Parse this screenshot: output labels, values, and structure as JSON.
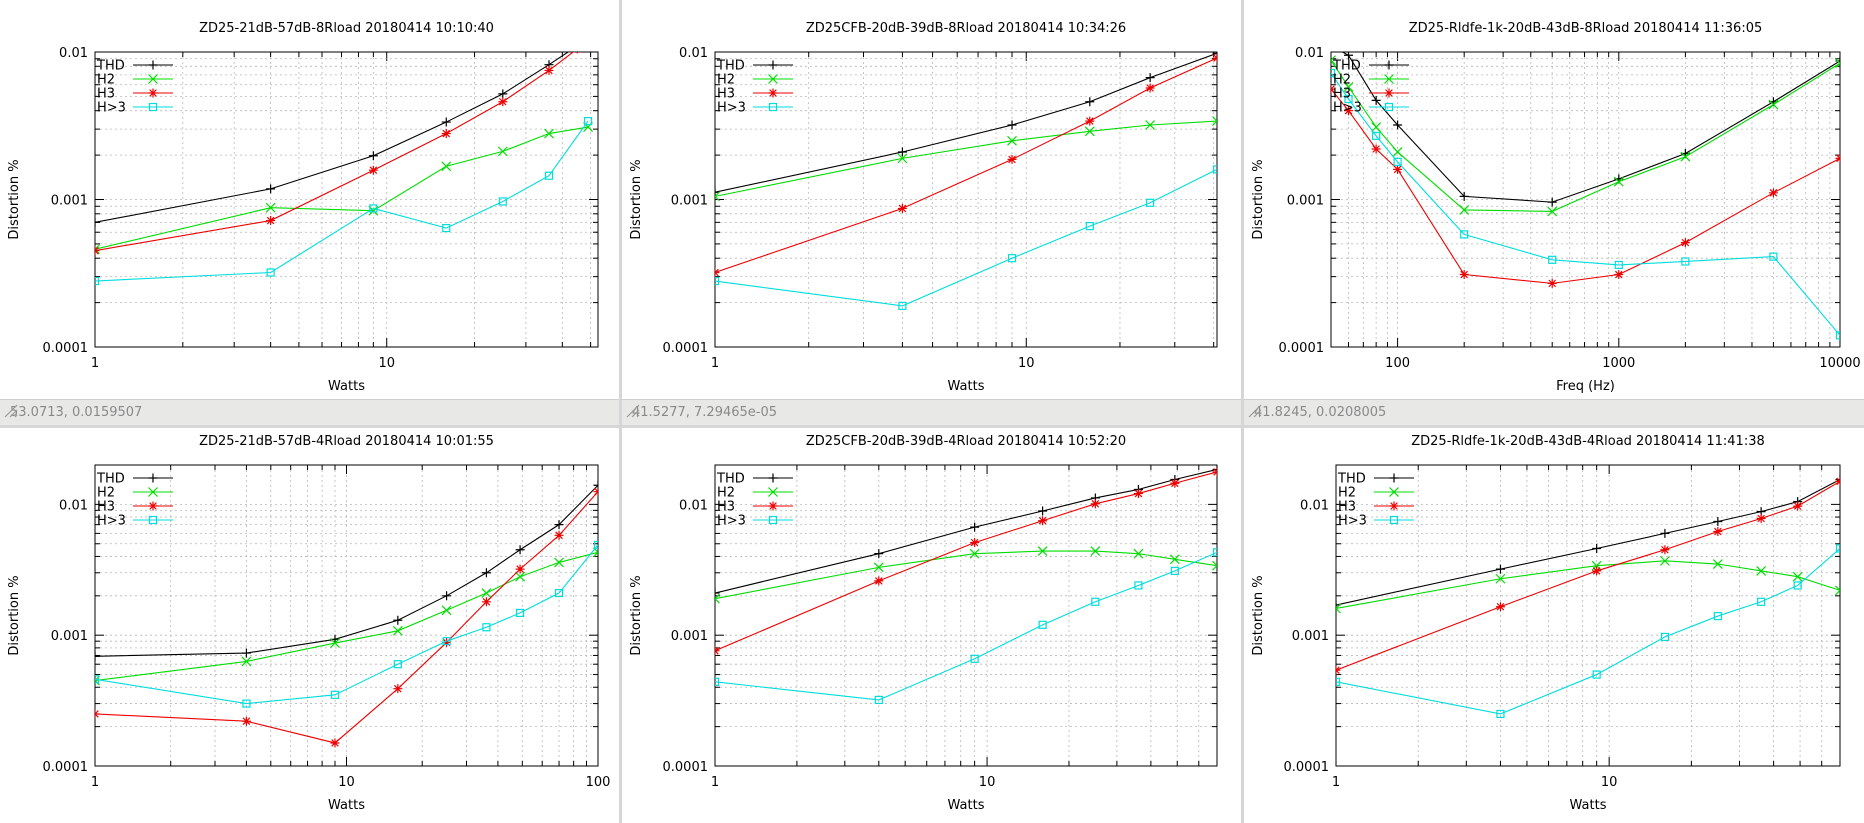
{
  "panels": [
    {
      "status": "53.0713,  0.0159507",
      "chart": {
        "type": "line",
        "title": "ZD25-21dB-57dB-8Rload 20180414 10:10:40",
        "xlabel": "Watts",
        "ylabel": "Distortion %",
        "xscale": "log",
        "yscale": "log",
        "xlim": [
          1,
          53
        ],
        "ylim": [
          0.0001,
          0.01
        ],
        "xticks": [
          1,
          10
        ],
        "yticks": [
          "0.0001",
          "0.001",
          "0.01"
        ],
        "grid": true,
        "legend": "top-left",
        "series": [
          {
            "name": "THD",
            "x": [
              1,
              4,
              9,
              16,
              25,
              36,
              45
            ],
            "y": [
              0.0007,
              0.00118,
              0.00198,
              0.00335,
              0.0052,
              0.0082,
              0.011
            ]
          },
          {
            "name": "H2",
            "x": [
              1,
              4,
              9,
              16,
              25,
              36,
              49
            ],
            "y": [
              0.00046,
              0.00088,
              0.00084,
              0.00168,
              0.00212,
              0.0028,
              0.0031
            ]
          },
          {
            "name": "H3",
            "x": [
              1,
              4,
              9,
              16,
              25,
              36,
              45
            ],
            "y": [
              0.00045,
              0.00072,
              0.00158,
              0.0028,
              0.0046,
              0.0075,
              0.0105
            ]
          },
          {
            "name": "H>3",
            "x": [
              1,
              4,
              9,
              16,
              25,
              36,
              49
            ],
            "y": [
              0.00028,
              0.00032,
              0.00087,
              0.00064,
              0.00097,
              0.00145,
              0.0034
            ]
          }
        ]
      }
    },
    {
      "status": "41.5277,  7.29465e-05",
      "chart": {
        "type": "line",
        "title": "ZD25CFB-20dB-39dB-8Rload 20180414 10:34:26",
        "xlabel": "Watts",
        "ylabel": "Distortion %",
        "xscale": "log",
        "yscale": "log",
        "xlim": [
          1,
          41
        ],
        "ylim": [
          0.0001,
          0.01
        ],
        "xticks": [
          1,
          10
        ],
        "yticks": [
          "0.0001",
          "0.001",
          "0.01"
        ],
        "grid": true,
        "legend": "top-left",
        "series": [
          {
            "name": "THD",
            "x": [
              1,
              4,
              9,
              16,
              25,
              41
            ],
            "y": [
              0.00112,
              0.0021,
              0.0032,
              0.0046,
              0.0067,
              0.0098
            ]
          },
          {
            "name": "H2",
            "x": [
              1,
              4,
              9,
              16,
              25,
              41
            ],
            "y": [
              0.00105,
              0.0019,
              0.0025,
              0.0029,
              0.0032,
              0.0034
            ]
          },
          {
            "name": "H3",
            "x": [
              1,
              4,
              9,
              16,
              25,
              41
            ],
            "y": [
              0.00032,
              0.00087,
              0.00187,
              0.0034,
              0.0057,
              0.0091
            ]
          },
          {
            "name": "H>3",
            "x": [
              1,
              4,
              9,
              16,
              25,
              41
            ],
            "y": [
              0.00028,
              0.00019,
              0.0004,
              0.00066,
              0.00095,
              0.0016
            ]
          }
        ]
      }
    },
    {
      "status": "41.8245,  0.0208005",
      "chart": {
        "type": "line",
        "title": "ZD25-Rldfe-1k-20dB-43dB-8Rload 20180414 11:36:05",
        "xlabel": "Freq (Hz)",
        "ylabel": "Distortion %",
        "xscale": "log",
        "yscale": "log",
        "xlim": [
          50,
          10000
        ],
        "ylim": [
          0.0001,
          0.01
        ],
        "xticks": [
          100,
          1000,
          10000
        ],
        "yticks": [
          "0.0001",
          "0.001",
          "0.01"
        ],
        "grid": true,
        "legend": "top-left",
        "series": [
          {
            "name": "THD",
            "x": [
              50,
              60,
              80,
              100,
              200,
              500,
              1000,
              2000,
              5000,
              10000
            ],
            "y": [
              0.011,
              0.0095,
              0.0047,
              0.0032,
              0.00105,
              0.00096,
              0.00138,
              0.00205,
              0.0046,
              0.0087
            ]
          },
          {
            "name": "H2",
            "x": [
              50,
              60,
              80,
              100,
              200,
              500,
              1000,
              2000,
              5000,
              10000
            ],
            "y": [
              0.0088,
              0.0058,
              0.0031,
              0.0021,
              0.00085,
              0.00083,
              0.00132,
              0.00195,
              0.0044,
              0.0084
            ]
          },
          {
            "name": "H3",
            "x": [
              50,
              60,
              80,
              100,
              200,
              500,
              1000,
              2000,
              5000,
              10000
            ],
            "y": [
              0.0056,
              0.004,
              0.0022,
              0.0016,
              0.00031,
              0.00027,
              0.00031,
              0.00051,
              0.00111,
              0.0019
            ]
          },
          {
            "name": "H>3",
            "x": [
              50,
              60,
              80,
              100,
              200,
              500,
              1000,
              2000,
              5000,
              10000
            ],
            "y": [
              0.0072,
              0.0048,
              0.0027,
              0.0018,
              0.00058,
              0.00039,
              0.00036,
              0.00038,
              0.00041,
              0.00012
            ]
          }
        ]
      }
    },
    {
      "status": "",
      "chart": {
        "type": "line",
        "title": "ZD25-21dB-57dB-4Rload 20180414 10:01:55",
        "xlabel": "Watts",
        "ylabel": "Distortion %",
        "xscale": "log",
        "yscale": "log",
        "xlim": [
          1,
          100
        ],
        "ylim": [
          0.0001,
          0.02
        ],
        "xticks": [
          1,
          10,
          100
        ],
        "yticks": [
          "0.0001",
          "0.001",
          "0.01"
        ],
        "grid": true,
        "legend": "top-left",
        "series": [
          {
            "name": "THD",
            "x": [
              1,
              4,
              9,
              16,
              25,
              36,
              49,
              70,
              100
            ],
            "y": [
              0.00069,
              0.00073,
              0.00093,
              0.0013,
              0.002,
              0.003,
              0.0045,
              0.007,
              0.014
            ]
          },
          {
            "name": "H2",
            "x": [
              1,
              4,
              9,
              16,
              25,
              36,
              49,
              70,
              100
            ],
            "y": [
              0.00045,
              0.00063,
              0.00087,
              0.00108,
              0.00155,
              0.0021,
              0.0028,
              0.0036,
              0.0043
            ]
          },
          {
            "name": "H3",
            "x": [
              1,
              4,
              9,
              16,
              25,
              36,
              49,
              70,
              100
            ],
            "y": [
              0.00025,
              0.00022,
              0.00015,
              0.00039,
              0.00088,
              0.0018,
              0.0032,
              0.0058,
              0.0125
            ]
          },
          {
            "name": "H>3",
            "x": [
              1,
              4,
              9,
              16,
              25,
              36,
              49,
              70,
              100
            ],
            "y": [
              0.00046,
              0.0003,
              0.00035,
              0.0006,
              0.0009,
              0.00115,
              0.00148,
              0.0021,
              0.0049
            ]
          }
        ]
      }
    },
    {
      "status": "",
      "chart": {
        "type": "line",
        "title": "ZD25CFB-20dB-39dB-4Rload 20180414 10:52:20",
        "xlabel": "Watts",
        "ylabel": "Distortion %",
        "xscale": "log",
        "yscale": "log",
        "xlim": [
          1,
          70
        ],
        "ylim": [
          0.0001,
          0.02
        ],
        "xticks": [
          1,
          10
        ],
        "yticks": [
          "0.0001",
          "0.001",
          "0.01"
        ],
        "grid": true,
        "legend": "top-left",
        "series": [
          {
            "name": "THD",
            "x": [
              1,
              4,
              9,
              16,
              25,
              36,
              49,
              70
            ],
            "y": [
              0.0021,
              0.0042,
              0.0067,
              0.0089,
              0.0112,
              0.013,
              0.0155,
              0.0185
            ]
          },
          {
            "name": "H2",
            "x": [
              1,
              4,
              9,
              16,
              25,
              36,
              49,
              70
            ],
            "y": [
              0.0019,
              0.0033,
              0.0042,
              0.0044,
              0.0044,
              0.0042,
              0.0038,
              0.0034
            ]
          },
          {
            "name": "H3",
            "x": [
              1,
              4,
              9,
              16,
              25,
              36,
              49,
              70
            ],
            "y": [
              0.00076,
              0.0026,
              0.0051,
              0.0075,
              0.0101,
              0.0121,
              0.0145,
              0.0177
            ]
          },
          {
            "name": "H>3",
            "x": [
              1,
              4,
              9,
              16,
              25,
              36,
              49,
              70
            ],
            "y": [
              0.00044,
              0.00032,
              0.00066,
              0.0012,
              0.0018,
              0.0024,
              0.0031,
              0.0043
            ]
          }
        ]
      }
    },
    {
      "status": "",
      "chart": {
        "type": "line",
        "title": "ZD25-Rldfe-1k-20dB-43dB-4Rload 20180414 11:41:38",
        "xlabel": "Watts",
        "ylabel": "Distortion %",
        "xscale": "log",
        "yscale": "log",
        "xlim": [
          1,
          70
        ],
        "ylim": [
          0.0001,
          0.02
        ],
        "xticks": [
          1,
          10
        ],
        "yticks": [
          "0.0001",
          "0.001",
          "0.01"
        ],
        "grid": true,
        "legend": "top-left",
        "series": [
          {
            "name": "THD",
            "x": [
              1,
              4,
              9,
              16,
              25,
              36,
              49,
              70
            ],
            "y": [
              0.0017,
              0.0032,
              0.0046,
              0.006,
              0.0074,
              0.0088,
              0.0105,
              0.0155
            ]
          },
          {
            "name": "H2",
            "x": [
              1,
              4,
              9,
              16,
              25,
              36,
              49,
              70
            ],
            "y": [
              0.0016,
              0.0027,
              0.0034,
              0.0037,
              0.0035,
              0.0031,
              0.0028,
              0.0022
            ]
          },
          {
            "name": "H3",
            "x": [
              1,
              4,
              9,
              16,
              25,
              36,
              49,
              70
            ],
            "y": [
              0.00054,
              0.00165,
              0.0031,
              0.0045,
              0.0062,
              0.0078,
              0.0097,
              0.015
            ]
          },
          {
            "name": "H>3",
            "x": [
              1,
              4,
              9,
              16,
              25,
              36,
              49,
              70
            ],
            "y": [
              0.00044,
              0.00025,
              0.0005,
              0.00097,
              0.0014,
              0.0018,
              0.0024,
              0.0046
            ]
          }
        ]
      }
    }
  ],
  "series_style": {
    "THD": {
      "color": "#000000",
      "marker": "plus"
    },
    "H2": {
      "color": "#00dd00",
      "marker": "cross"
    },
    "H3": {
      "color": "#ee0000",
      "marker": "star"
    },
    "H>3": {
      "color": "#00dddd",
      "marker": "box"
    }
  }
}
